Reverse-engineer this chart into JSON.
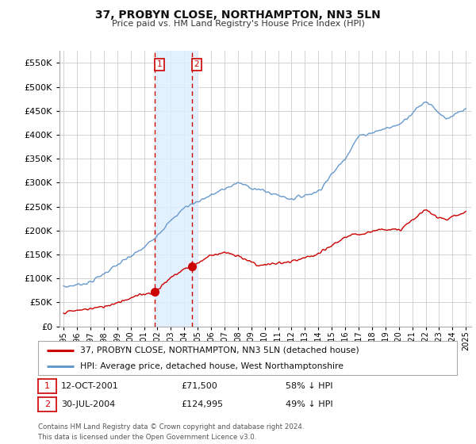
{
  "title": "37, PROBYN CLOSE, NORTHAMPTON, NN3 5LN",
  "subtitle": "Price paid vs. HM Land Registry's House Price Index (HPI)",
  "background_color": "#ffffff",
  "plot_bg_color": "#ffffff",
  "grid_color": "#cccccc",
  "ylim": [
    0,
    575000
  ],
  "yticks": [
    0,
    50000,
    100000,
    150000,
    200000,
    250000,
    300000,
    350000,
    400000,
    450000,
    500000,
    550000
  ],
  "transactions": [
    {
      "date_num": 2001.79,
      "price": 71500,
      "label": "1"
    },
    {
      "date_num": 2004.58,
      "price": 124995,
      "label": "2"
    }
  ],
  "transaction_1": {
    "date": "12-OCT-2001",
    "price": "£71,500",
    "pct": "58% ↓ HPI",
    "label": "1"
  },
  "transaction_2": {
    "date": "30-JUL-2004",
    "price": "£124,995",
    "pct": "49% ↓ HPI",
    "label": "2"
  },
  "legend_red": "37, PROBYN CLOSE, NORTHAMPTON, NN3 5LN (detached house)",
  "legend_blue": "HPI: Average price, detached house, West Northamptonshire",
  "footer": "Contains HM Land Registry data © Crown copyright and database right 2024.\nThis data is licensed under the Open Government Licence v3.0.",
  "red_color": "#cc0000",
  "blue_color": "#6699cc",
  "highlight_band_color": "#ddeeff",
  "vline_color": "#cc0000",
  "box1_color": "#cc0000",
  "box2_color": "#cc0000"
}
